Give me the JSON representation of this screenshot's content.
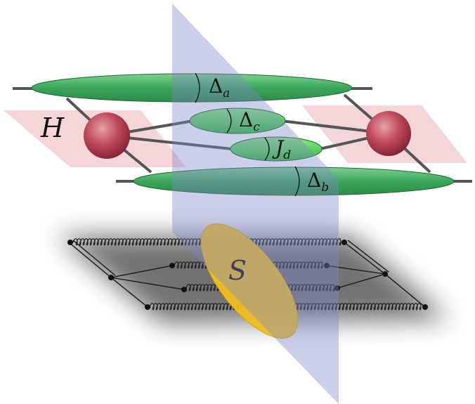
{
  "labels": {
    "H": "H",
    "S": "S",
    "delta_a": {
      "symbol": "Δ",
      "sub": "a"
    },
    "delta_c": {
      "symbol": "Δ",
      "sub": "c"
    },
    "j_d": {
      "symbol": "J",
      "sub": "d"
    },
    "delta_b": {
      "symbol": "Δ",
      "sub": "b"
    }
  }
}
